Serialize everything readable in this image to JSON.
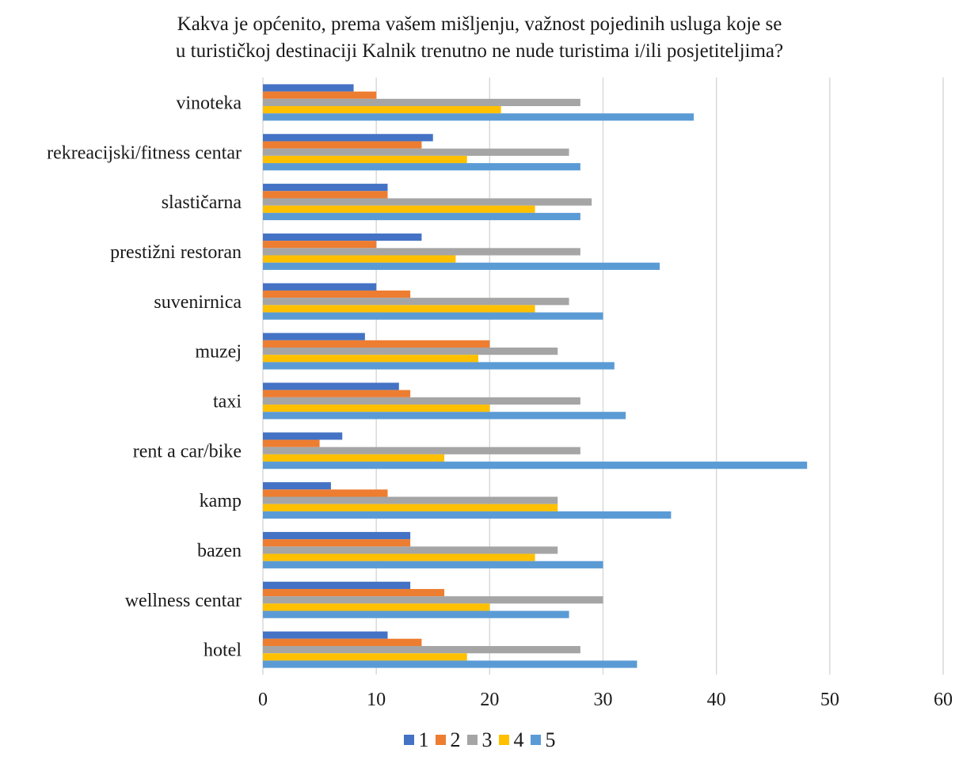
{
  "chart_data": {
    "type": "bar",
    "orientation": "horizontal",
    "title_line1": "Kakva je općenito, prema vašem mišljenju, važnost pojedinih usluga koje se",
    "title_line2": "u turističkoj destinaciji Kalnik trenutno ne nude turistima i/ili posjetiteljima?",
    "categories": [
      "vinoteka",
      "rekreacijski/fitness centar",
      "slastičarna",
      "prestižni restoran",
      "suvenirnica",
      "muzej",
      "taxi",
      "rent a car/bike",
      "kamp",
      "bazen",
      "wellness centar",
      "hotel"
    ],
    "series": [
      {
        "name": "1",
        "color": "#4472C4",
        "values": [
          8,
          15,
          11,
          14,
          10,
          9,
          12,
          7,
          6,
          13,
          13,
          11
        ]
      },
      {
        "name": "2",
        "color": "#ED7D31",
        "values": [
          10,
          14,
          11,
          10,
          13,
          20,
          13,
          5,
          11,
          13,
          16,
          14
        ]
      },
      {
        "name": "3",
        "color": "#A5A5A5",
        "values": [
          28,
          27,
          29,
          28,
          27,
          26,
          28,
          28,
          26,
          26,
          30,
          28
        ]
      },
      {
        "name": "4",
        "color": "#FFC000",
        "values": [
          21,
          18,
          24,
          17,
          24,
          19,
          20,
          16,
          26,
          24,
          20,
          18
        ]
      },
      {
        "name": "5",
        "color": "#5B9BD5",
        "values": [
          38,
          28,
          28,
          35,
          30,
          31,
          32,
          48,
          36,
          30,
          27,
          33
        ]
      }
    ],
    "xlim": [
      0,
      60
    ],
    "x_ticks": [
      "0",
      "10",
      "20",
      "30",
      "40",
      "50",
      "60"
    ],
    "grid": true,
    "legend_position": "bottom"
  }
}
